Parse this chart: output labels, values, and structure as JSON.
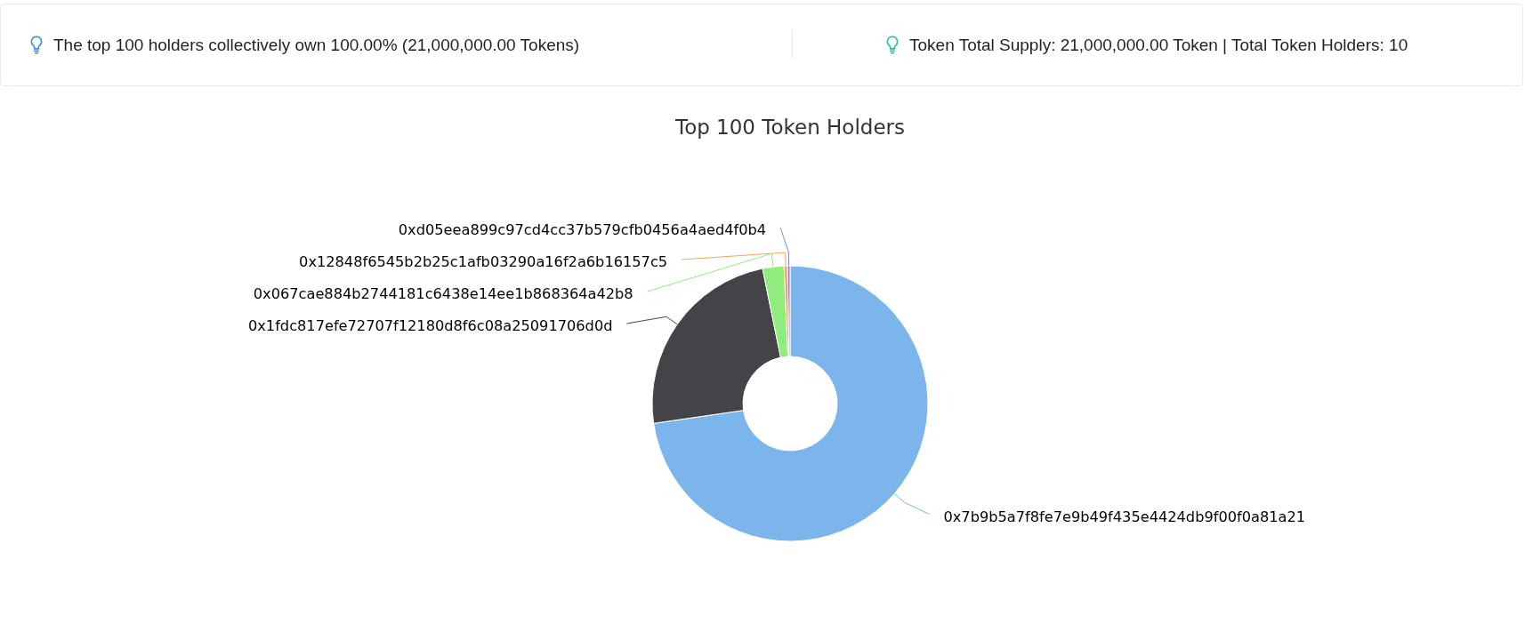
{
  "chart_data": {
    "type": "donut",
    "title": "Top 100 Token Holders",
    "categories": [
      "0x7b9b5a7f8fe7e9b49f435e4424db9f00f0a81a21",
      "0x1fdc817efe72707f12180d8f6c08a25091706d0d",
      "0x067cae884b2744181c6438e14ee1b868364a42b8",
      "0x12848f6545b2b25c1afb03290a16f2a6b16157c5",
      "0xd05eea899c97cd4cc37b579cfb0456a4aed4f0b4"
    ],
    "values": [
      72.7,
      24.1,
      2.5,
      0.4,
      0.3
    ],
    "colors": [
      "#7cb5ec",
      "#434348",
      "#90ed7d",
      "#f7a35c",
      "#8085e9"
    ],
    "annotations": [
      "The top 100 holders collectively own 100.00% (21,000,000.00 Tokens)",
      "Token Total Supply: 21,000,000.00 Token | Total Token Holders: 10"
    ]
  }
}
